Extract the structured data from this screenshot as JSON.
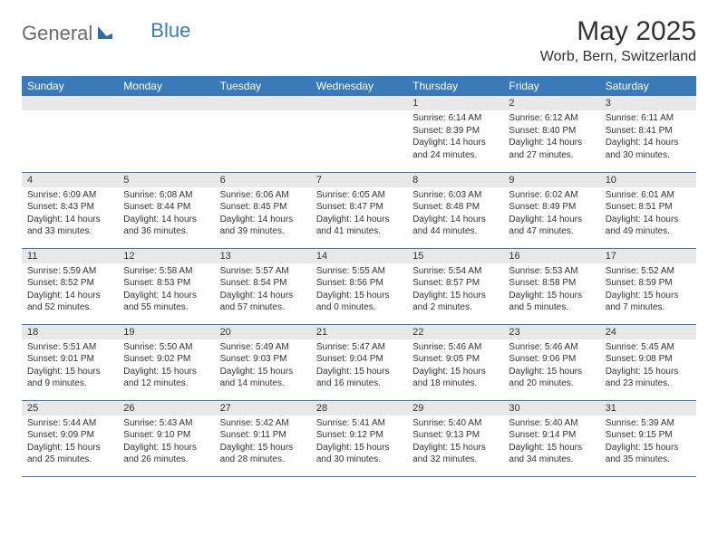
{
  "logo": {
    "part1": "General",
    "part2": "Blue"
  },
  "title": "May 2025",
  "location": "Worb, Bern, Switzerland",
  "colors": {
    "header_bg": "#3a7ab8",
    "header_text": "#ffffff",
    "daynum_bg": "#e8e8e8",
    "border": "#3a7ab8",
    "logo_gray": "#6b6b6b",
    "logo_blue": "#3a7ab8",
    "text": "#333333",
    "page_bg": "#ffffff"
  },
  "dayNames": [
    "Sunday",
    "Monday",
    "Tuesday",
    "Wednesday",
    "Thursday",
    "Friday",
    "Saturday"
  ],
  "weeks": [
    [
      {
        "n": "",
        "sr": "",
        "ss": "",
        "dl": ""
      },
      {
        "n": "",
        "sr": "",
        "ss": "",
        "dl": ""
      },
      {
        "n": "",
        "sr": "",
        "ss": "",
        "dl": ""
      },
      {
        "n": "",
        "sr": "",
        "ss": "",
        "dl": ""
      },
      {
        "n": "1",
        "sr": "Sunrise: 6:14 AM",
        "ss": "Sunset: 8:39 PM",
        "dl": "Daylight: 14 hours and 24 minutes."
      },
      {
        "n": "2",
        "sr": "Sunrise: 6:12 AM",
        "ss": "Sunset: 8:40 PM",
        "dl": "Daylight: 14 hours and 27 minutes."
      },
      {
        "n": "3",
        "sr": "Sunrise: 6:11 AM",
        "ss": "Sunset: 8:41 PM",
        "dl": "Daylight: 14 hours and 30 minutes."
      }
    ],
    [
      {
        "n": "4",
        "sr": "Sunrise: 6:09 AM",
        "ss": "Sunset: 8:43 PM",
        "dl": "Daylight: 14 hours and 33 minutes."
      },
      {
        "n": "5",
        "sr": "Sunrise: 6:08 AM",
        "ss": "Sunset: 8:44 PM",
        "dl": "Daylight: 14 hours and 36 minutes."
      },
      {
        "n": "6",
        "sr": "Sunrise: 6:06 AM",
        "ss": "Sunset: 8:45 PM",
        "dl": "Daylight: 14 hours and 39 minutes."
      },
      {
        "n": "7",
        "sr": "Sunrise: 6:05 AM",
        "ss": "Sunset: 8:47 PM",
        "dl": "Daylight: 14 hours and 41 minutes."
      },
      {
        "n": "8",
        "sr": "Sunrise: 6:03 AM",
        "ss": "Sunset: 8:48 PM",
        "dl": "Daylight: 14 hours and 44 minutes."
      },
      {
        "n": "9",
        "sr": "Sunrise: 6:02 AM",
        "ss": "Sunset: 8:49 PM",
        "dl": "Daylight: 14 hours and 47 minutes."
      },
      {
        "n": "10",
        "sr": "Sunrise: 6:01 AM",
        "ss": "Sunset: 8:51 PM",
        "dl": "Daylight: 14 hours and 49 minutes."
      }
    ],
    [
      {
        "n": "11",
        "sr": "Sunrise: 5:59 AM",
        "ss": "Sunset: 8:52 PM",
        "dl": "Daylight: 14 hours and 52 minutes."
      },
      {
        "n": "12",
        "sr": "Sunrise: 5:58 AM",
        "ss": "Sunset: 8:53 PM",
        "dl": "Daylight: 14 hours and 55 minutes."
      },
      {
        "n": "13",
        "sr": "Sunrise: 5:57 AM",
        "ss": "Sunset: 8:54 PM",
        "dl": "Daylight: 14 hours and 57 minutes."
      },
      {
        "n": "14",
        "sr": "Sunrise: 5:55 AM",
        "ss": "Sunset: 8:56 PM",
        "dl": "Daylight: 15 hours and 0 minutes."
      },
      {
        "n": "15",
        "sr": "Sunrise: 5:54 AM",
        "ss": "Sunset: 8:57 PM",
        "dl": "Daylight: 15 hours and 2 minutes."
      },
      {
        "n": "16",
        "sr": "Sunrise: 5:53 AM",
        "ss": "Sunset: 8:58 PM",
        "dl": "Daylight: 15 hours and 5 minutes."
      },
      {
        "n": "17",
        "sr": "Sunrise: 5:52 AM",
        "ss": "Sunset: 8:59 PM",
        "dl": "Daylight: 15 hours and 7 minutes."
      }
    ],
    [
      {
        "n": "18",
        "sr": "Sunrise: 5:51 AM",
        "ss": "Sunset: 9:01 PM",
        "dl": "Daylight: 15 hours and 9 minutes."
      },
      {
        "n": "19",
        "sr": "Sunrise: 5:50 AM",
        "ss": "Sunset: 9:02 PM",
        "dl": "Daylight: 15 hours and 12 minutes."
      },
      {
        "n": "20",
        "sr": "Sunrise: 5:49 AM",
        "ss": "Sunset: 9:03 PM",
        "dl": "Daylight: 15 hours and 14 minutes."
      },
      {
        "n": "21",
        "sr": "Sunrise: 5:47 AM",
        "ss": "Sunset: 9:04 PM",
        "dl": "Daylight: 15 hours and 16 minutes."
      },
      {
        "n": "22",
        "sr": "Sunrise: 5:46 AM",
        "ss": "Sunset: 9:05 PM",
        "dl": "Daylight: 15 hours and 18 minutes."
      },
      {
        "n": "23",
        "sr": "Sunrise: 5:46 AM",
        "ss": "Sunset: 9:06 PM",
        "dl": "Daylight: 15 hours and 20 minutes."
      },
      {
        "n": "24",
        "sr": "Sunrise: 5:45 AM",
        "ss": "Sunset: 9:08 PM",
        "dl": "Daylight: 15 hours and 23 minutes."
      }
    ],
    [
      {
        "n": "25",
        "sr": "Sunrise: 5:44 AM",
        "ss": "Sunset: 9:09 PM",
        "dl": "Daylight: 15 hours and 25 minutes."
      },
      {
        "n": "26",
        "sr": "Sunrise: 5:43 AM",
        "ss": "Sunset: 9:10 PM",
        "dl": "Daylight: 15 hours and 26 minutes."
      },
      {
        "n": "27",
        "sr": "Sunrise: 5:42 AM",
        "ss": "Sunset: 9:11 PM",
        "dl": "Daylight: 15 hours and 28 minutes."
      },
      {
        "n": "28",
        "sr": "Sunrise: 5:41 AM",
        "ss": "Sunset: 9:12 PM",
        "dl": "Daylight: 15 hours and 30 minutes."
      },
      {
        "n": "29",
        "sr": "Sunrise: 5:40 AM",
        "ss": "Sunset: 9:13 PM",
        "dl": "Daylight: 15 hours and 32 minutes."
      },
      {
        "n": "30",
        "sr": "Sunrise: 5:40 AM",
        "ss": "Sunset: 9:14 PM",
        "dl": "Daylight: 15 hours and 34 minutes."
      },
      {
        "n": "31",
        "sr": "Sunrise: 5:39 AM",
        "ss": "Sunset: 9:15 PM",
        "dl": "Daylight: 15 hours and 35 minutes."
      }
    ]
  ]
}
